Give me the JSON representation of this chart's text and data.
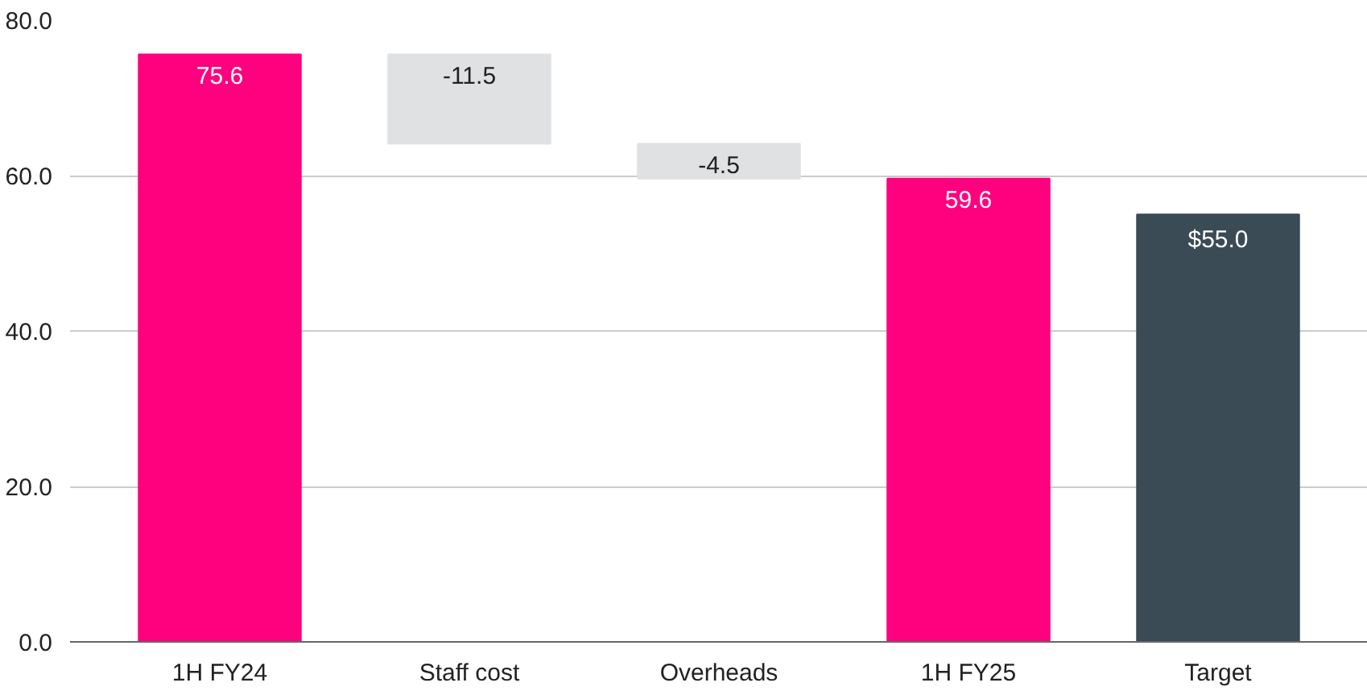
{
  "chart_data": {
    "type": "bar",
    "categories": [
      "1H FY24",
      "Staff cost",
      "Overheads",
      "1H FY25",
      "Target"
    ],
    "values": [
      75.6,
      -11.5,
      -4.5,
      59.6,
      55.0
    ],
    "base": [
      0,
      75.6,
      64.1,
      0,
      0
    ],
    "value_labels": [
      "75.6",
      "-11.5",
      "-4.5",
      "59.6",
      "$55.0"
    ],
    "colors": [
      "#ff007f",
      "#e0e1e3",
      "#e0e1e3",
      "#ff007f",
      "#3b4b55"
    ],
    "ylim": [
      0,
      80
    ],
    "yticks": [
      {
        "value": 0,
        "label": "0.0"
      },
      {
        "value": 20,
        "label": "20.0"
      },
      {
        "value": 40,
        "label": "40.0"
      },
      {
        "value": 60,
        "label": "60.0"
      },
      {
        "value": 80,
        "label": "80.0"
      }
    ],
    "grid": "y"
  }
}
